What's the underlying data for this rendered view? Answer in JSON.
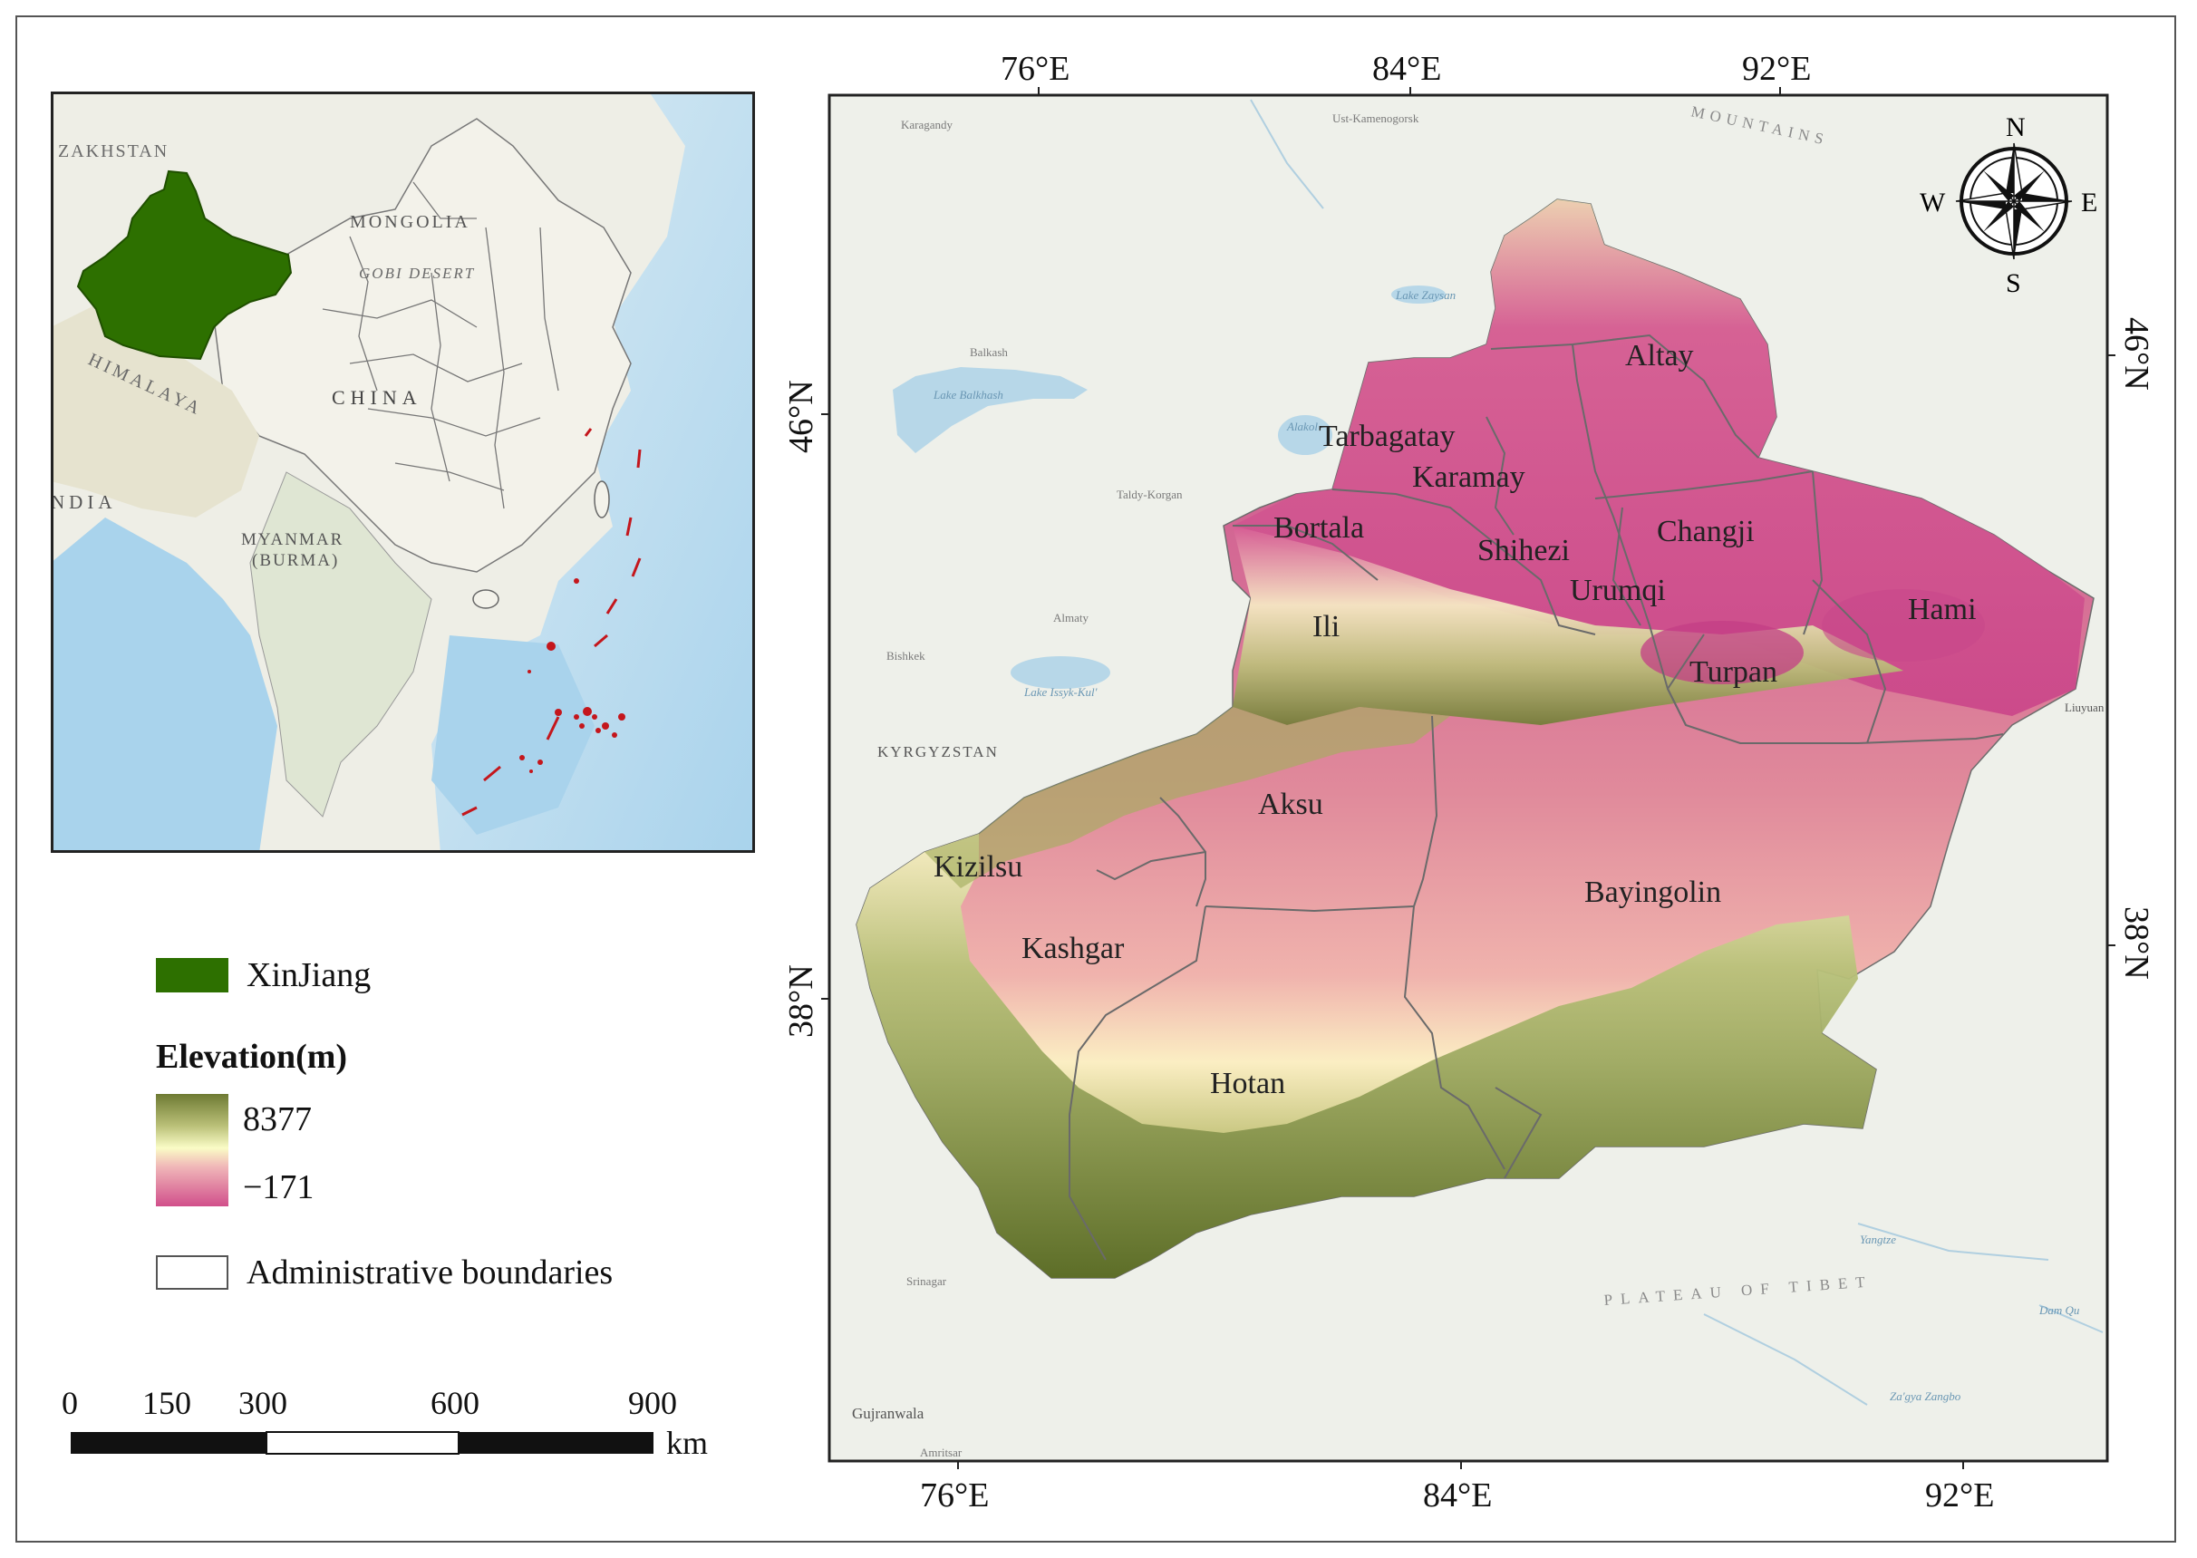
{
  "inset_map": {
    "labels": {
      "kazakhstan": "ZAKHSTAN",
      "mongolia": "MONGOLIA",
      "gobi": "GOBI DESERT",
      "china": "CHINA",
      "himalaya": "HIMALAYA",
      "india": "NDIA",
      "myanmar": "MYANMAR",
      "burma": "(BURMA)"
    },
    "highlight_color": "#2d7000",
    "border_color": "#555555",
    "island_color": "#c4161c"
  },
  "main_map": {
    "top_ticks": [
      "76°E",
      "84°E",
      "92°E"
    ],
    "bottom_ticks": [
      "76°E",
      "84°E",
      "92°E"
    ],
    "left_ticks": [
      "46°N",
      "38°N"
    ],
    "right_ticks": [
      "46°N",
      "38°N"
    ],
    "regions": {
      "altay": "Altay",
      "tarbagatay": "Tarbagatay",
      "karamay": "Karamay",
      "bortala": "Bortala",
      "shihezi": "Shihezi",
      "changji": "Changji",
      "urumqi": "Urumqi",
      "hami": "Hami",
      "ili": "Ili",
      "turpan": "Turpan",
      "aksu": "Aksu",
      "kizilsu": "Kizilsu",
      "bayingolin": "Bayingolin",
      "kashgar": "Kashgar",
      "hotan": "Hotan"
    },
    "basemap_labels": {
      "karagandy": "Karagandy",
      "kamenogorsk": "Ust-\nKamenogorsk",
      "lake_zaysan": "Lake\nZaysan",
      "balkash": "Balkash",
      "lake_balkhash": "Lake\nBalkhash",
      "alakol": "Alakol",
      "taldy": "Taldy-Korgan",
      "almaty": "Almaty",
      "bishkek": "Bishkek",
      "issyk": "Lake\nIssyk-Kul'",
      "kyrgyzstan": "KYRGYZSTAN",
      "mountains": "MOUNTAINS",
      "liuyuan": "Liuyuan",
      "srinagar": "Srinagar",
      "gujranwala": "Gujranwala",
      "amritsar": "Amritsar",
      "plateau": "PLATEAU OF TIBET",
      "yangtze": "Yangtze",
      "zaya": "Za'gya Zangbo",
      "dam_qu": "Dam Qu"
    },
    "compass": {
      "n": "N",
      "s": "S",
      "e": "E",
      "w": "W"
    }
  },
  "legend": {
    "xinjiang": "XinJiang",
    "elevation_title": "Elevation(m)",
    "elev_max": "8377",
    "elev_min": "−171",
    "admin": "Administrative boundaries"
  },
  "scale_bar": {
    "ticks": [
      "0",
      "150",
      "300",
      "600",
      "900"
    ],
    "unit": "km"
  }
}
